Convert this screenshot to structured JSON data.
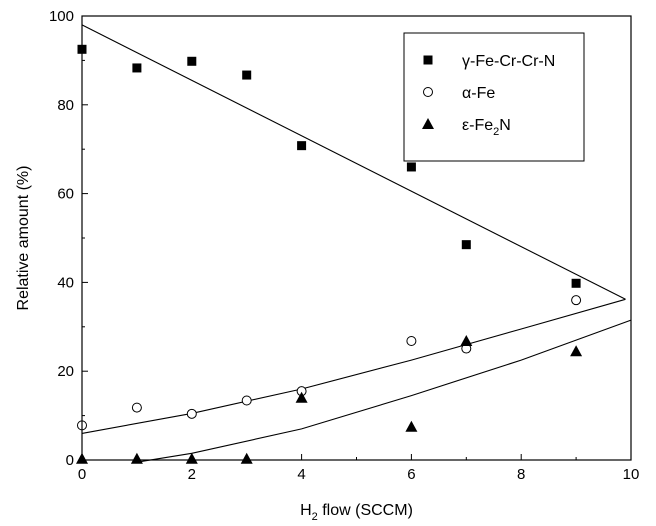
{
  "chart_data": {
    "type": "scatter",
    "xlabel": {
      "main": "H",
      "sub": "2",
      "rest": " flow (SCCM)"
    },
    "ylabel": "Relative amount (%)",
    "xlim": [
      0,
      10
    ],
    "ylim": [
      0,
      100
    ],
    "x_ticks": [
      0,
      2,
      4,
      6,
      8,
      10
    ],
    "y_ticks": [
      0,
      20,
      40,
      60,
      80,
      100
    ],
    "grid": false,
    "legend_position": "top-right",
    "series": [
      {
        "name": "γ-Fe-Cr-Cr-N",
        "marker": "filled-square",
        "color": "#000000",
        "points": [
          [
            0,
            92.5
          ],
          [
            1,
            88.3
          ],
          [
            2,
            89.8
          ],
          [
            3,
            86.7
          ],
          [
            4,
            70.8
          ],
          [
            6,
            66.0
          ],
          [
            7,
            48.5
          ],
          [
            9,
            39.8
          ]
        ]
      },
      {
        "name": "α-Fe",
        "marker": "open-circle",
        "color": "#000000",
        "points": [
          [
            0,
            7.8
          ],
          [
            1,
            11.8
          ],
          [
            2,
            10.4
          ],
          [
            3,
            13.4
          ],
          [
            4,
            15.5
          ],
          [
            6,
            26.8
          ],
          [
            7,
            25.1
          ],
          [
            9,
            36.0
          ]
        ]
      },
      {
        "name_parts": [
          "ε-Fe",
          "2",
          "N"
        ],
        "marker": "filled-triangle",
        "color": "#000000",
        "points": [
          [
            0,
            0.3
          ],
          [
            1,
            0.3
          ],
          [
            2,
            0.3
          ],
          [
            3,
            0.3
          ],
          [
            4,
            14.0
          ],
          [
            6,
            7.5
          ],
          [
            7,
            26.8
          ],
          [
            9,
            24.5
          ]
        ]
      }
    ],
    "fit_curves": [
      {
        "points": [
          [
            0,
            98
          ],
          [
            9.9,
            36.2
          ]
        ]
      },
      {
        "points": [
          [
            0,
            6
          ],
          [
            2,
            10.5
          ],
          [
            4,
            16
          ],
          [
            6,
            22.5
          ],
          [
            8,
            29.5
          ],
          [
            9.9,
            36.2
          ]
        ]
      },
      {
        "points": [
          [
            1,
            -0.5
          ],
          [
            2,
            1.5
          ],
          [
            4,
            7
          ],
          [
            6,
            14.5
          ],
          [
            8,
            22.5
          ],
          [
            10,
            31.5
          ]
        ]
      }
    ]
  }
}
